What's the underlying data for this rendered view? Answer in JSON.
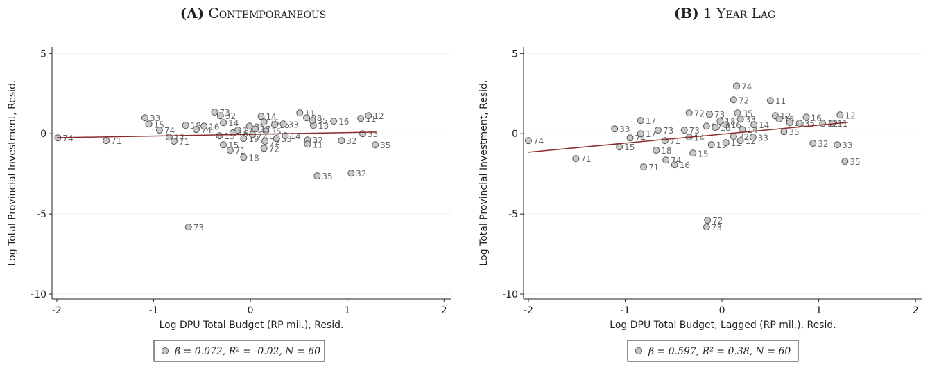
{
  "chart_data": [
    {
      "type": "scatter",
      "title_label": "(A)",
      "title": "Contemporaneous",
      "x_label": "Log DPU Total Budget (RP mil.), Resid.",
      "y_label": "Log Total Provincial Investment, Resid.",
      "xlim": [
        -2.05,
        2.07
      ],
      "ylim": [
        -10.3,
        5.4
      ],
      "xticks": [
        -2,
        -1,
        0,
        1,
        2
      ],
      "yticks": [
        -10,
        -5,
        0,
        5
      ],
      "grid": true,
      "color": "#c8c8c8",
      "line_color": "#8b2c2c",
      "x": [
        -1.99,
        -1.49,
        -1.09,
        -1.05,
        -0.94,
        -0.84,
        -0.79,
        -0.67,
        -0.56,
        -0.48,
        -0.37,
        -0.31,
        -0.28,
        -0.32,
        -0.28,
        -0.21,
        -0.13,
        -0.07,
        -0.07,
        -0.01,
        0.11,
        0.14,
        0.16,
        0.15,
        0.14,
        0.27,
        0.25,
        0.34,
        0.36,
        0.51,
        0.58,
        0.65,
        0.59,
        0.59,
        0.64,
        0.86,
        0.94,
        1.14,
        1.22,
        1.16,
        1.29,
        1.04,
        0.69,
        -0.64,
        0.05,
        -0.18,
        0.02
      ],
      "y": [
        -0.26,
        -0.43,
        0.99,
        0.6,
        0.22,
        -0.22,
        -0.47,
        0.52,
        0.26,
        0.47,
        1.34,
        1.12,
        0.69,
        -0.13,
        -0.69,
        -1.03,
        0.22,
        -1.47,
        -0.3,
        0.47,
        1.08,
        0.73,
        0.17,
        -0.47,
        -0.91,
        -0.3,
        0.56,
        0.6,
        -0.13,
        1.29,
        0.99,
        0.52,
        -0.39,
        -0.65,
        0.82,
        0.78,
        -0.43,
        0.95,
        1.12,
        0,
        -0.69,
        -2.46,
        -2.63,
        -5.82,
        0.3,
        0.05,
        -0.05
      ],
      "labels": [
        "74",
        "71",
        "33",
        "15",
        "74",
        "17",
        "71",
        "18",
        "74",
        "16",
        "73",
        "32",
        "14",
        "13",
        "15",
        "71",
        "17",
        "18",
        "19",
        "35",
        "14",
        "35",
        "35",
        "72",
        "72",
        "33",
        "15",
        "33",
        "14",
        "11",
        "28",
        "13",
        "32",
        "11",
        "35",
        "16",
        "32",
        "11",
        "12",
        "33",
        "35",
        "32",
        "35",
        "73",
        "17",
        "16",
        "72"
      ],
      "fit": {
        "x": [
          -2,
          1.3
        ],
        "y": [
          -0.25,
          0.1
        ]
      },
      "legend": "β = 0.072, R² = -0.02, N = 60"
    },
    {
      "type": "scatter",
      "title_label": "(B)",
      "title": "1 Year Lag",
      "x_label": "Log DPU Total Budget, Lagged (RP mil.), Resid.",
      "y_label": "Log Total Provincial Investment, Resid.",
      "xlim": [
        -2.05,
        2.07
      ],
      "ylim": [
        -10.3,
        5.4
      ],
      "xticks": [
        -2,
        -1,
        0,
        1,
        2
      ],
      "yticks": [
        -10,
        -5,
        0,
        5
      ],
      "grid": true,
      "color": "#c8c8c8",
      "line_color": "#8b2c2c",
      "x": [
        -2,
        -1.51,
        -1.11,
        -1.06,
        -0.95,
        -0.84,
        -0.84,
        -0.81,
        -0.68,
        -0.58,
        -0.49,
        -0.66,
        -0.59,
        -0.34,
        -0.39,
        -0.34,
        -0.3,
        -0.16,
        -0.11,
        -0.15,
        -0.16,
        -0.13,
        0.04,
        0.15,
        0.12,
        0.16,
        0.19,
        0.21,
        0.12,
        0.19,
        0.32,
        0.33,
        0.5,
        0.55,
        0.64,
        0.59,
        0.7,
        0.8,
        0.87,
        0.94,
        1.04,
        1.14,
        1.22,
        1.19,
        1.27,
        0.04,
        -0.07,
        -0.02
      ],
      "y": [
        -0.43,
        -1.55,
        0.3,
        -0.82,
        -0.26,
        0.82,
        0,
        -2.07,
        -1.03,
        -1.64,
        -1.94,
        0.22,
        -0.43,
        1.29,
        0.22,
        -0.22,
        -1.21,
        0.47,
        -0.69,
        -5.39,
        -5.82,
        1.21,
        -0.56,
        2.97,
        2.11,
        1.29,
        0.91,
        0.26,
        -0.17,
        -0.43,
        -0.22,
        0.56,
        2.07,
        1.12,
        0.13,
        0.91,
        0.69,
        0.65,
        1.03,
        -0.6,
        0.65,
        0.65,
        1.16,
        -0.69,
        -1.72,
        0.56,
        0.39,
        0.78
      ],
      "labels": [
        "74",
        "71",
        "33",
        "15",
        "74",
        "17",
        "17",
        "71",
        "18",
        "74",
        "16",
        "73",
        "71",
        "72",
        "73",
        "14",
        "15",
        "17",
        "13",
        "72",
        "73",
        "73",
        "11",
        "74",
        "72",
        "35",
        "33",
        "14",
        "32",
        "12",
        "33",
        "14",
        "11",
        "12",
        "35",
        "15",
        "35",
        "35",
        "16",
        "32",
        "32",
        "11",
        "12",
        "33",
        "35",
        "16",
        "18",
        "18"
      ],
      "fit": {
        "x": [
          -2,
          1.3
        ],
        "y": [
          -1.15,
          0.7
        ]
      },
      "legend": "β = 0.597, R² = 0.38, N = 60"
    }
  ]
}
